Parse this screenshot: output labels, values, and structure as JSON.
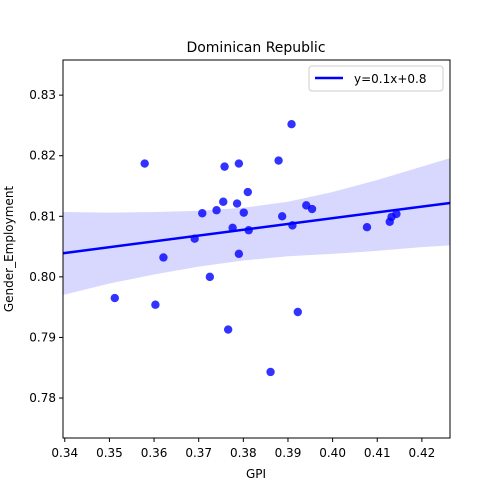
{
  "chart_data": {
    "type": "scatter",
    "title": "Dominican Republic",
    "xlabel": "GPI",
    "ylabel": "Gender_Employment",
    "xlim": [
      0.3396,
      0.4263
    ],
    "ylim": [
      0.7734,
      0.8358
    ],
    "x_ticks": [
      "0.34",
      "0.35",
      "0.36",
      "0.37",
      "0.38",
      "0.39",
      "0.40",
      "0.41",
      "0.42"
    ],
    "y_ticks": [
      "0.78",
      "0.79",
      "0.80",
      "0.81",
      "0.82",
      "0.83"
    ],
    "grid": false,
    "legend_position": "top-right",
    "colors": {
      "points": "#0000ff",
      "line": "#0000ff",
      "band": "#d4d4ff"
    },
    "series": [
      {
        "kind": "points",
        "x": [
          0.3512,
          0.3579,
          0.3603,
          0.3621,
          0.3691,
          0.3708,
          0.3725,
          0.374,
          0.3755,
          0.3758,
          0.3766,
          0.3776,
          0.3786,
          0.379,
          0.379,
          0.3801,
          0.381,
          0.3812,
          0.3861,
          0.3879,
          0.3887,
          0.3908,
          0.391,
          0.3922,
          0.3941,
          0.3954,
          0.4077,
          0.4128,
          0.4132,
          0.4143
        ],
        "y": [
          0.7965,
          0.8187,
          0.7954,
          0.8032,
          0.8063,
          0.8105,
          0.8,
          0.811,
          0.8124,
          0.8182,
          0.7913,
          0.8081,
          0.8121,
          0.8187,
          0.8038,
          0.8106,
          0.814,
          0.8077,
          0.7843,
          0.8192,
          0.81,
          0.8252,
          0.8085,
          0.7942,
          0.8118,
          0.8112,
          0.8082,
          0.8091,
          0.8099,
          0.8104
        ]
      },
      {
        "kind": "regression",
        "name": "y=0.1x+0.8",
        "x": [
          0.3396,
          0.4263
        ],
        "y": [
          0.8039,
          0.8122
        ]
      },
      {
        "kind": "confidence_band",
        "x": [
          0.3396,
          0.35,
          0.36,
          0.37,
          0.38,
          0.39,
          0.4,
          0.41,
          0.42,
          0.4263
        ],
        "upper": [
          0.8107,
          0.8106,
          0.8107,
          0.8109,
          0.8114,
          0.8124,
          0.814,
          0.816,
          0.8182,
          0.8196
        ],
        "lower": [
          0.797,
          0.7989,
          0.8004,
          0.8017,
          0.8027,
          0.8034,
          0.8038,
          0.8043,
          0.8049,
          0.8052
        ]
      }
    ]
  }
}
